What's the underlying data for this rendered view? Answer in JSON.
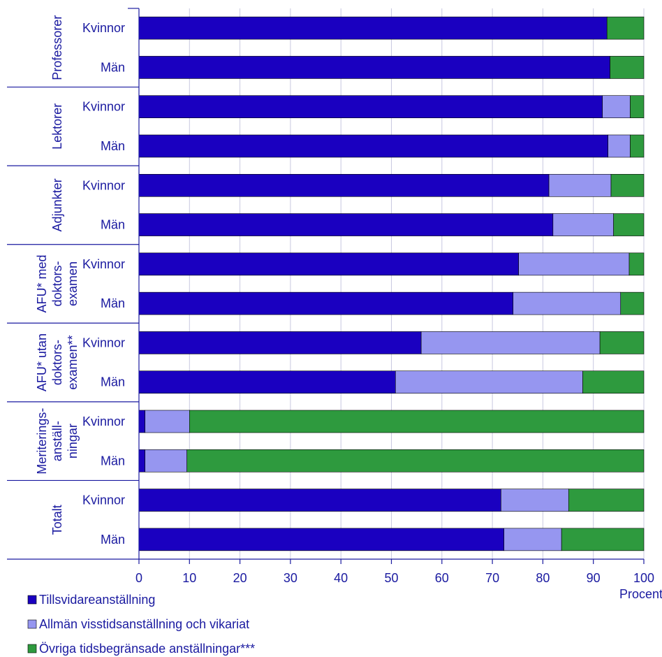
{
  "chart_data": {
    "type": "bar",
    "orientation": "horizontal",
    "stacked": true,
    "groups": [
      {
        "label": [
          "Professorer"
        ],
        "rows": [
          {
            "label": "Kvinnor",
            "values": [
              92.7,
              0.0,
              7.3
            ]
          },
          {
            "label": "Män",
            "values": [
              93.3,
              0.0,
              6.7
            ]
          }
        ]
      },
      {
        "label": [
          "Lektorer"
        ],
        "rows": [
          {
            "label": "Kvinnor",
            "values": [
              91.8,
              5.5,
              2.7
            ]
          },
          {
            "label": "Män",
            "values": [
              92.9,
              4.4,
              2.7
            ]
          }
        ]
      },
      {
        "label": [
          "Adjunkter"
        ],
        "rows": [
          {
            "label": "Kvinnor",
            "values": [
              81.2,
              12.3,
              6.5
            ]
          },
          {
            "label": "Män",
            "values": [
              82.0,
              12.0,
              6.0
            ]
          }
        ]
      },
      {
        "label": [
          "AFU* med",
          "doktors-",
          "examen"
        ],
        "rows": [
          {
            "label": "Kvinnor",
            "values": [
              75.2,
              21.9,
              2.9
            ]
          },
          {
            "label": "Män",
            "values": [
              74.1,
              21.3,
              4.6
            ]
          }
        ]
      },
      {
        "label": [
          "AFU* utan",
          "doktors-",
          "examen**"
        ],
        "rows": [
          {
            "label": "Kvinnor",
            "values": [
              55.9,
              35.4,
              8.7
            ]
          },
          {
            "label": "Män",
            "values": [
              50.8,
              37.1,
              12.1
            ]
          }
        ]
      },
      {
        "label": [
          "Meriterings-",
          "anställ-",
          "ningar"
        ],
        "rows": [
          {
            "label": "Kvinnor",
            "values": [
              1.2,
              8.8,
              90.0
            ]
          },
          {
            "label": "Män",
            "values": [
              1.2,
              8.3,
              90.5
            ]
          }
        ]
      },
      {
        "label": [
          "Totalt"
        ],
        "rows": [
          {
            "label": "Kvinnor",
            "values": [
              71.7,
              13.4,
              14.9
            ]
          },
          {
            "label": "Män",
            "values": [
              72.3,
              11.4,
              16.3
            ]
          }
        ]
      }
    ],
    "series": [
      {
        "name": "Tillsvidareanställning",
        "color": "#1a00c0"
      },
      {
        "name": "Allmän visstidsanställning och vikariat",
        "color": "#9696f0"
      },
      {
        "name": "Övriga tidsbegränsade anställningar***",
        "color": "#2e9a3e"
      }
    ],
    "x_ticks": [
      0,
      10,
      20,
      30,
      40,
      50,
      60,
      70,
      80,
      90,
      100
    ],
    "xlim": [
      0,
      100
    ],
    "xlabel": "Procent",
    "grid": true,
    "legend_position": "bottom-left",
    "text_color": "#1a1aa0"
  }
}
